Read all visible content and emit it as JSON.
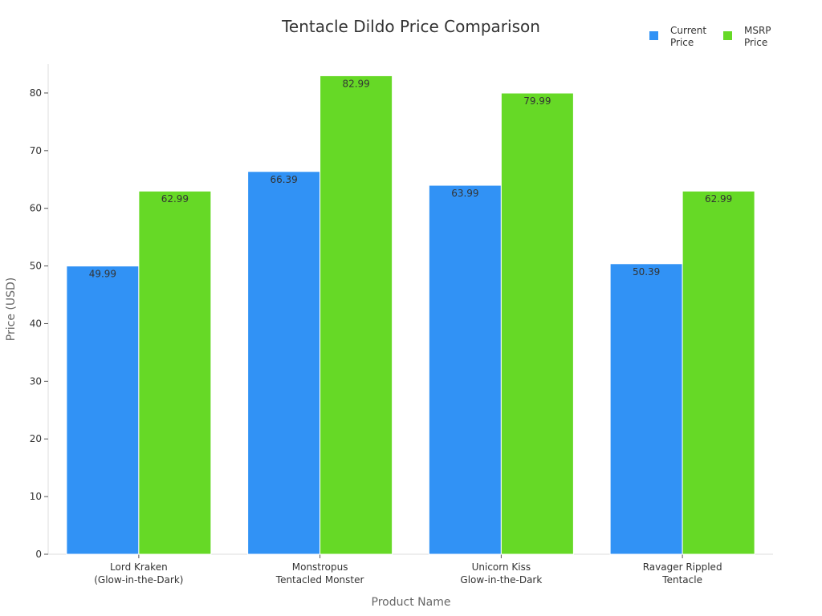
{
  "chart_data": {
    "type": "bar",
    "title": "Tentacle Dildo Price Comparison",
    "xlabel": "Product Name",
    "ylabel": "Price (USD)",
    "ylim": [
      0,
      85
    ],
    "yticks": [
      0,
      10,
      20,
      30,
      40,
      50,
      60,
      70,
      80
    ],
    "categories": [
      [
        "Lord Kraken",
        "(Glow-in-the-Dark)"
      ],
      [
        "Monstropus",
        "Tentacled Monster"
      ],
      [
        "Unicorn Kiss",
        "Glow-in-the-Dark"
      ],
      [
        "Ravager Rippled",
        "Tentacle"
      ]
    ],
    "series": [
      {
        "name": [
          "Current",
          "Price"
        ],
        "color": "#3192f5",
        "values": [
          49.99,
          66.39,
          63.99,
          50.39
        ]
      },
      {
        "name": [
          "MSRP",
          "Price"
        ],
        "color": "#66d926",
        "values": [
          62.99,
          82.99,
          79.99,
          62.99
        ]
      }
    ],
    "legend_position": "top-right",
    "grid": false
  }
}
